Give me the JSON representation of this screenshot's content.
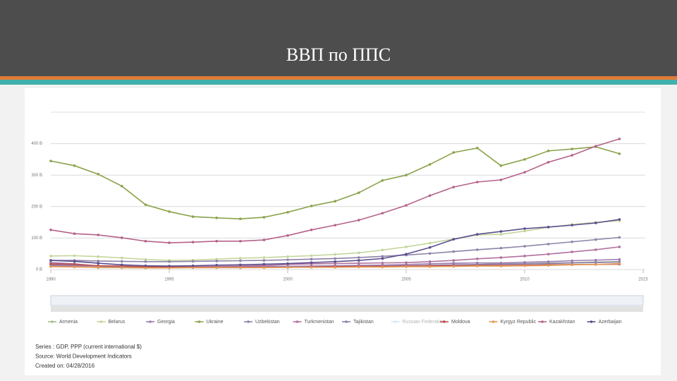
{
  "header": {
    "title": "ВВП по ППС"
  },
  "chart_data": {
    "type": "line",
    "x": [
      1990,
      1991,
      1992,
      1993,
      1994,
      1995,
      1996,
      1997,
      1998,
      1999,
      2000,
      2001,
      2002,
      2003,
      2004,
      2005,
      2006,
      2007,
      2008,
      2009,
      2010,
      2011,
      2012,
      2013,
      2014
    ],
    "xlim": [
      1990,
      2015
    ],
    "xticks": [
      1990,
      1995,
      2000,
      2005,
      2010,
      2015
    ],
    "ylim": [
      0,
      500
    ],
    "yticks": [
      {
        "value": 0,
        "label": "0 B"
      },
      {
        "value": 100,
        "label": "100 B"
      },
      {
        "value": 200,
        "label": "200 B"
      },
      {
        "value": 300,
        "label": "300 B"
      },
      {
        "value": 400,
        "label": "400 B"
      }
    ],
    "grid": true,
    "series": [
      {
        "name": "Armenia",
        "color": "#a9bf8a",
        "values": [
          11,
          10,
          6,
          6,
          6,
          6,
          7,
          7,
          8,
          8,
          9,
          10,
          11,
          13,
          14,
          16,
          18,
          20,
          21,
          18,
          19,
          21,
          22,
          24,
          25
        ]
      },
      {
        "name": "Belarus",
        "color": "#c3d69b",
        "values": [
          43,
          44,
          41,
          37,
          32,
          29,
          30,
          33,
          36,
          38,
          41,
          44,
          48,
          53,
          62,
          72,
          84,
          97,
          110,
          112,
          122,
          134,
          143,
          150,
          155
        ]
      },
      {
        "name": "Georgia",
        "color": "#9c7bb5",
        "values": [
          22,
          18,
          11,
          8,
          7,
          7,
          8,
          9,
          9,
          10,
          10,
          11,
          12,
          13,
          14,
          16,
          18,
          20,
          21,
          21,
          23,
          25,
          28,
          30,
          32
        ]
      },
      {
        "name": "Ukraine",
        "color": "#8aa34a",
        "values": [
          345,
          330,
          303,
          265,
          206,
          184,
          168,
          164,
          161,
          166,
          182,
          202,
          217,
          244,
          283,
          300,
          334,
          372,
          386,
          330,
          350,
          377,
          383,
          390,
          368
        ]
      },
      {
        "name": "Uzbekistan",
        "color": "#8e82a8",
        "values": [
          29,
          29,
          27,
          26,
          25,
          25,
          26,
          27,
          28,
          29,
          31,
          33,
          35,
          38,
          42,
          46,
          51,
          57,
          63,
          68,
          74,
          81,
          88,
          95,
          102
        ]
      },
      {
        "name": "Turkmenistan",
        "color": "#b0719d",
        "values": [
          13,
          12,
          11,
          10,
          9,
          9,
          9,
          10,
          11,
          13,
          16,
          18,
          19,
          20,
          21,
          22,
          25,
          29,
          34,
          38,
          43,
          49,
          56,
          63,
          72
        ]
      },
      {
        "name": "Tajikistan",
        "color": "#8c7fb0",
        "values": [
          16,
          15,
          11,
          9,
          7,
          6,
          6,
          6,
          6,
          7,
          7,
          8,
          9,
          10,
          11,
          12,
          13,
          15,
          16,
          17,
          18,
          19,
          21,
          22,
          24
        ]
      },
      {
        "name": "Moldova",
        "color": "#c0504d",
        "values": [
          18,
          17,
          12,
          11,
          8,
          8,
          7,
          7,
          7,
          7,
          7,
          8,
          9,
          10,
          10,
          11,
          12,
          12,
          13,
          13,
          14,
          15,
          16,
          16,
          17
        ]
      },
      {
        "name": "Kyrgyz Republic",
        "color": "#e39a55",
        "values": [
          9,
          8,
          7,
          6,
          5,
          5,
          6,
          6,
          6,
          6,
          7,
          7,
          7,
          8,
          8,
          9,
          9,
          10,
          11,
          11,
          12,
          13,
          15,
          16,
          19
        ]
      },
      {
        "name": "Kazakhstan",
        "color": "#b5628a",
        "values": [
          126,
          114,
          110,
          101,
          90,
          85,
          87,
          90,
          90,
          94,
          108,
          126,
          141,
          157,
          179,
          204,
          235,
          262,
          278,
          285,
          309,
          341,
          363,
          392,
          415
        ]
      },
      {
        "name": "Azerbaijan",
        "color": "#5b4e8e",
        "values": [
          29,
          26,
          20,
          15,
          12,
          11,
          12,
          14,
          15,
          17,
          19,
          22,
          25,
          29,
          35,
          49,
          70,
          96,
          112,
          121,
          130,
          135,
          141,
          148,
          159
        ]
      }
    ],
    "hidden_series": [
      {
        "name": "Russian Federation",
        "color": "#a9cce3"
      }
    ],
    "notes": [
      "Series : GDP, PPP (current international $)",
      "Source: World Development Indicators",
      "Created on: 04/28/2016"
    ]
  }
}
